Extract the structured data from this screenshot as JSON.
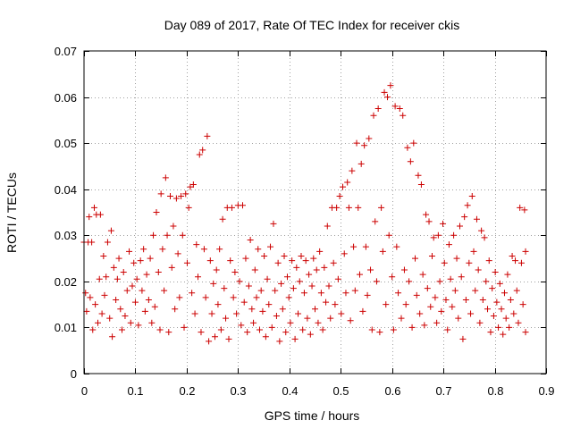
{
  "chart_data": {
    "type": "scatter",
    "title": "Day 089 of 2017, Rate Of TEC Index for receiver ckis",
    "xlabel": "GPS time / hours",
    "ylabel": "ROTI / TECUs",
    "xlim": [
      0,
      0.9
    ],
    "ylim": [
      0,
      0.07
    ],
    "x_ticks": [
      0,
      0.1,
      0.2,
      0.3,
      0.4,
      0.5,
      0.6,
      0.7,
      0.8,
      0.9
    ],
    "x_tick_labels": [
      "0",
      "0.1",
      "0.2",
      "0.3",
      "0.4",
      "0.5",
      "0.6",
      "0.7",
      "0.8",
      "0.9"
    ],
    "y_ticks": [
      0,
      0.01,
      0.02,
      0.03,
      0.04,
      0.05,
      0.06,
      0.07
    ],
    "y_tick_labels": [
      "0",
      "0.01",
      "0.02",
      "0.03",
      "0.04",
      "0.05",
      "0.06",
      "0.07"
    ],
    "grid": true,
    "marker": "plus",
    "color": "#cc0000",
    "series": [
      {
        "points": [
          [
            0.0,
            0.0285
          ],
          [
            0.003,
            0.0175
          ],
          [
            0.005,
            0.0135
          ],
          [
            0.008,
            0.0285
          ],
          [
            0.01,
            0.034
          ],
          [
            0.012,
            0.0165
          ],
          [
            0.015,
            0.0285
          ],
          [
            0.017,
            0.0095
          ],
          [
            0.02,
            0.036
          ],
          [
            0.022,
            0.015
          ],
          [
            0.024,
            0.0345
          ],
          [
            0.027,
            0.011
          ],
          [
            0.03,
            0.0205
          ],
          [
            0.032,
            0.0345
          ],
          [
            0.035,
            0.013
          ],
          [
            0.038,
            0.0255
          ],
          [
            0.04,
            0.017
          ],
          [
            0.043,
            0.021
          ],
          [
            0.046,
            0.0285
          ],
          [
            0.05,
            0.012
          ],
          [
            0.053,
            0.031
          ],
          [
            0.055,
            0.008
          ],
          [
            0.058,
            0.023
          ],
          [
            0.062,
            0.016
          ],
          [
            0.065,
            0.0205
          ],
          [
            0.068,
            0.025
          ],
          [
            0.071,
            0.014
          ],
          [
            0.074,
            0.0095
          ],
          [
            0.077,
            0.022
          ],
          [
            0.08,
            0.0125
          ],
          [
            0.084,
            0.018
          ],
          [
            0.088,
            0.0265
          ],
          [
            0.091,
            0.011
          ],
          [
            0.094,
            0.019
          ],
          [
            0.097,
            0.024
          ],
          [
            0.1,
            0.0155
          ],
          [
            0.103,
            0.0205
          ],
          [
            0.106,
            0.0105
          ],
          [
            0.11,
            0.0245
          ],
          [
            0.113,
            0.018
          ],
          [
            0.116,
            0.027
          ],
          [
            0.119,
            0.0135
          ],
          [
            0.122,
            0.0215
          ],
          [
            0.126,
            0.016
          ],
          [
            0.129,
            0.025
          ],
          [
            0.132,
            0.011
          ],
          [
            0.135,
            0.03
          ],
          [
            0.138,
            0.0145
          ],
          [
            0.141,
            0.035
          ],
          [
            0.145,
            0.022
          ],
          [
            0.148,
            0.0095
          ],
          [
            0.15,
            0.039
          ],
          [
            0.153,
            0.027
          ],
          [
            0.156,
            0.018
          ],
          [
            0.159,
            0.0425
          ],
          [
            0.162,
            0.03
          ],
          [
            0.165,
            0.009
          ],
          [
            0.168,
            0.0385
          ],
          [
            0.171,
            0.023
          ],
          [
            0.174,
            0.032
          ],
          [
            0.177,
            0.014
          ],
          [
            0.18,
            0.038
          ],
          [
            0.183,
            0.026
          ],
          [
            0.186,
            0.0165
          ],
          [
            0.189,
            0.0385
          ],
          [
            0.192,
            0.03
          ],
          [
            0.195,
            0.01
          ],
          [
            0.198,
            0.039
          ],
          [
            0.201,
            0.024
          ],
          [
            0.204,
            0.036
          ],
          [
            0.207,
            0.0405
          ],
          [
            0.21,
            0.0175
          ],
          [
            0.213,
            0.041
          ],
          [
            0.216,
            0.013
          ],
          [
            0.219,
            0.028
          ],
          [
            0.222,
            0.021
          ],
          [
            0.225,
            0.0475
          ],
          [
            0.228,
            0.009
          ],
          [
            0.231,
            0.0485
          ],
          [
            0.234,
            0.027
          ],
          [
            0.237,
            0.0165
          ],
          [
            0.24,
            0.0515
          ],
          [
            0.243,
            0.007
          ],
          [
            0.246,
            0.0245
          ],
          [
            0.249,
            0.013
          ],
          [
            0.252,
            0.0195
          ],
          [
            0.255,
            0.008
          ],
          [
            0.258,
            0.0225
          ],
          [
            0.261,
            0.015
          ],
          [
            0.264,
            0.027
          ],
          [
            0.267,
            0.0095
          ],
          [
            0.27,
            0.0335
          ],
          [
            0.273,
            0.0185
          ],
          [
            0.276,
            0.012
          ],
          [
            0.279,
            0.036
          ],
          [
            0.282,
            0.0075
          ],
          [
            0.285,
            0.0245
          ],
          [
            0.288,
            0.036
          ],
          [
            0.291,
            0.0165
          ],
          [
            0.294,
            0.022
          ],
          [
            0.297,
            0.013
          ],
          [
            0.3,
            0.0365
          ],
          [
            0.303,
            0.02
          ],
          [
            0.306,
            0.0105
          ],
          [
            0.309,
            0.0365
          ],
          [
            0.312,
            0.0155
          ],
          [
            0.315,
            0.025
          ],
          [
            0.318,
            0.009
          ],
          [
            0.321,
            0.019
          ],
          [
            0.324,
            0.029
          ],
          [
            0.327,
            0.014
          ],
          [
            0.33,
            0.011
          ],
          [
            0.333,
            0.0225
          ],
          [
            0.336,
            0.0165
          ],
          [
            0.339,
            0.027
          ],
          [
            0.342,
            0.0095
          ],
          [
            0.345,
            0.018
          ],
          [
            0.348,
            0.0135
          ],
          [
            0.351,
            0.0255
          ],
          [
            0.354,
            0.008
          ],
          [
            0.357,
            0.0205
          ],
          [
            0.36,
            0.015
          ],
          [
            0.363,
            0.0275
          ],
          [
            0.366,
            0.01
          ],
          [
            0.369,
            0.0325
          ],
          [
            0.372,
            0.018
          ],
          [
            0.375,
            0.0125
          ],
          [
            0.378,
            0.024
          ],
          [
            0.381,
            0.007
          ],
          [
            0.384,
            0.0195
          ],
          [
            0.387,
            0.014
          ],
          [
            0.39,
            0.0255
          ],
          [
            0.393,
            0.009
          ],
          [
            0.396,
            0.021
          ],
          [
            0.399,
            0.0165
          ],
          [
            0.402,
            0.011
          ],
          [
            0.405,
            0.0245
          ],
          [
            0.408,
            0.0185
          ],
          [
            0.411,
            0.0075
          ],
          [
            0.414,
            0.023
          ],
          [
            0.417,
            0.013
          ],
          [
            0.42,
            0.02
          ],
          [
            0.423,
            0.0255
          ],
          [
            0.426,
            0.0095
          ],
          [
            0.429,
            0.0175
          ],
          [
            0.432,
            0.0245
          ],
          [
            0.435,
            0.012
          ],
          [
            0.438,
            0.0215
          ],
          [
            0.441,
            0.0085
          ],
          [
            0.444,
            0.019
          ],
          [
            0.447,
            0.025
          ],
          [
            0.45,
            0.014
          ],
          [
            0.453,
            0.0225
          ],
          [
            0.456,
            0.011
          ],
          [
            0.459,
            0.0265
          ],
          [
            0.462,
            0.0175
          ],
          [
            0.465,
            0.0095
          ],
          [
            0.468,
            0.023
          ],
          [
            0.471,
            0.0155
          ],
          [
            0.474,
            0.032
          ],
          [
            0.477,
            0.019
          ],
          [
            0.48,
            0.012
          ],
          [
            0.483,
            0.036
          ],
          [
            0.486,
            0.024
          ],
          [
            0.489,
            0.015
          ],
          [
            0.492,
            0.036
          ],
          [
            0.495,
            0.0205
          ],
          [
            0.498,
            0.0385
          ],
          [
            0.501,
            0.013
          ],
          [
            0.504,
            0.0405
          ],
          [
            0.507,
            0.026
          ],
          [
            0.51,
            0.0175
          ],
          [
            0.513,
            0.0415
          ],
          [
            0.516,
            0.036
          ],
          [
            0.519,
            0.0115
          ],
          [
            0.522,
            0.044
          ],
          [
            0.525,
            0.0275
          ],
          [
            0.528,
            0.018
          ],
          [
            0.531,
            0.05
          ],
          [
            0.534,
            0.036
          ],
          [
            0.537,
            0.0215
          ],
          [
            0.54,
            0.0455
          ],
          [
            0.543,
            0.0135
          ],
          [
            0.546,
            0.0495
          ],
          [
            0.549,
            0.0275
          ],
          [
            0.552,
            0.017
          ],
          [
            0.555,
            0.051
          ],
          [
            0.558,
            0.0225
          ],
          [
            0.561,
            0.0095
          ],
          [
            0.564,
            0.056
          ],
          [
            0.567,
            0.033
          ],
          [
            0.57,
            0.02
          ],
          [
            0.573,
            0.0575
          ],
          [
            0.576,
            0.009
          ],
          [
            0.579,
            0.036
          ],
          [
            0.582,
            0.0265
          ],
          [
            0.585,
            0.061
          ],
          [
            0.588,
            0.015
          ],
          [
            0.591,
            0.06
          ],
          [
            0.594,
            0.03
          ],
          [
            0.597,
            0.0625
          ],
          [
            0.6,
            0.021
          ],
          [
            0.603,
            0.0095
          ],
          [
            0.606,
            0.058
          ],
          [
            0.609,
            0.0275
          ],
          [
            0.612,
            0.0175
          ],
          [
            0.615,
            0.0575
          ],
          [
            0.618,
            0.012
          ],
          [
            0.621,
            0.056
          ],
          [
            0.624,
            0.0225
          ],
          [
            0.627,
            0.015
          ],
          [
            0.63,
            0.049
          ],
          [
            0.633,
            0.02
          ],
          [
            0.636,
            0.046
          ],
          [
            0.639,
            0.01
          ],
          [
            0.642,
            0.05
          ],
          [
            0.645,
            0.025
          ],
          [
            0.648,
            0.017
          ],
          [
            0.651,
            0.043
          ],
          [
            0.654,
            0.013
          ],
          [
            0.657,
            0.041
          ],
          [
            0.66,
            0.0215
          ],
          [
            0.663,
            0.0105
          ],
          [
            0.666,
            0.0345
          ],
          [
            0.669,
            0.0185
          ],
          [
            0.672,
            0.033
          ],
          [
            0.675,
            0.0145
          ],
          [
            0.678,
            0.0255
          ],
          [
            0.681,
            0.0295
          ],
          [
            0.684,
            0.0165
          ],
          [
            0.687,
            0.011
          ],
          [
            0.69,
            0.03
          ],
          [
            0.693,
            0.02
          ],
          [
            0.696,
            0.0135
          ],
          [
            0.699,
            0.0325
          ],
          [
            0.702,
            0.024
          ],
          [
            0.705,
            0.016
          ],
          [
            0.708,
            0.0095
          ],
          [
            0.711,
            0.028
          ],
          [
            0.714,
            0.0205
          ],
          [
            0.717,
            0.0145
          ],
          [
            0.72,
            0.03
          ],
          [
            0.723,
            0.018
          ],
          [
            0.726,
            0.025
          ],
          [
            0.729,
            0.012
          ],
          [
            0.732,
            0.032
          ],
          [
            0.735,
            0.021
          ],
          [
            0.738,
            0.0075
          ],
          [
            0.741,
            0.034
          ],
          [
            0.744,
            0.016
          ],
          [
            0.747,
            0.0365
          ],
          [
            0.75,
            0.024
          ],
          [
            0.753,
            0.013
          ],
          [
            0.756,
            0.0385
          ],
          [
            0.759,
            0.0265
          ],
          [
            0.762,
            0.018
          ],
          [
            0.765,
            0.0335
          ],
          [
            0.768,
            0.0225
          ],
          [
            0.771,
            0.011
          ],
          [
            0.774,
            0.031
          ],
          [
            0.777,
            0.016
          ],
          [
            0.78,
            0.0295
          ],
          [
            0.783,
            0.02
          ],
          [
            0.786,
            0.014
          ],
          [
            0.789,
            0.0245
          ],
          [
            0.792,
            0.009
          ],
          [
            0.795,
            0.0185
          ],
          [
            0.798,
            0.0125
          ],
          [
            0.801,
            0.022
          ],
          [
            0.804,
            0.0155
          ],
          [
            0.807,
            0.01
          ],
          [
            0.81,
            0.0195
          ],
          [
            0.813,
            0.014
          ],
          [
            0.816,
            0.0085
          ],
          [
            0.819,
            0.0175
          ],
          [
            0.822,
            0.012
          ],
          [
            0.825,
            0.0215
          ],
          [
            0.828,
            0.01
          ],
          [
            0.831,
            0.016
          ],
          [
            0.834,
            0.0255
          ],
          [
            0.837,
            0.013
          ],
          [
            0.84,
            0.0245
          ],
          [
            0.843,
            0.018
          ],
          [
            0.846,
            0.011
          ],
          [
            0.849,
            0.036
          ],
          [
            0.852,
            0.024
          ],
          [
            0.855,
            0.015
          ],
          [
            0.858,
            0.0355
          ],
          [
            0.86,
            0.0265
          ],
          [
            0.86,
            0.009
          ]
        ]
      }
    ]
  }
}
